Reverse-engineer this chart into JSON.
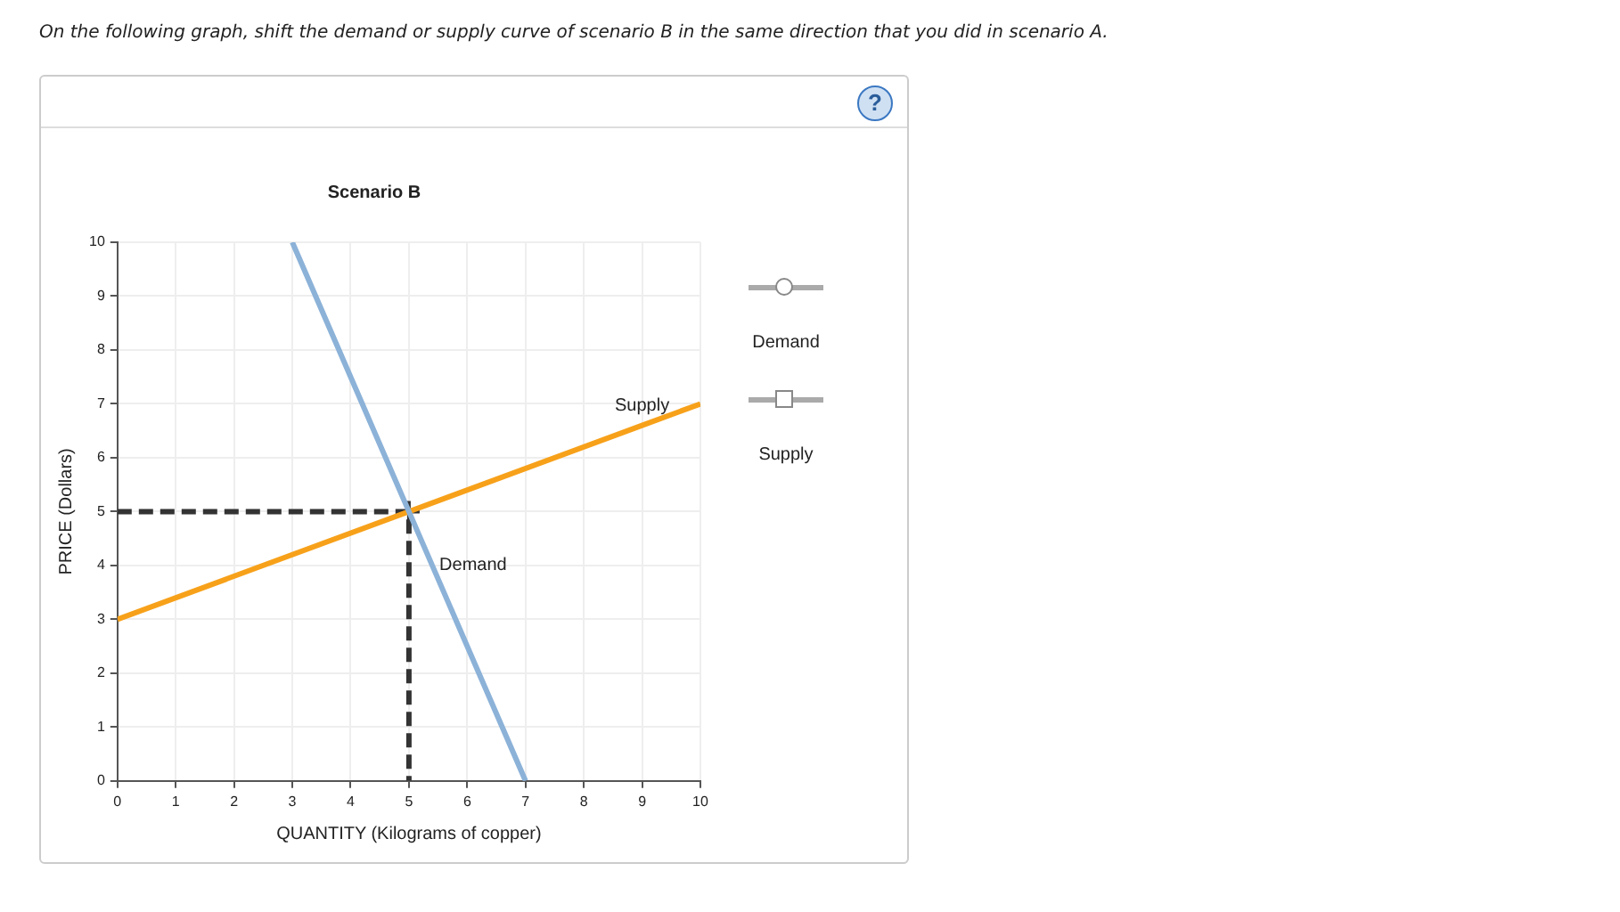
{
  "chart_data": {
    "type": "line",
    "title": "Scenario B",
    "xlabel": "QUANTITY (Kilograms of copper)",
    "ylabel": "PRICE (Dollars)",
    "annotations": [
      "On the following graph, shift the demand or supply curve of scenario B in the same direction that you did in scenario A.",
      "Demand",
      "Supply",
      "?"
    ],
    "series": [
      {
        "name": "Demand",
        "color": "#8cb2d8",
        "x": [
          3,
          5.4,
          7
        ],
        "values": [
          10,
          4,
          0
        ]
      },
      {
        "name": "Supply",
        "color": "#f7a11a",
        "x": [
          0,
          9,
          10
        ],
        "values": [
          3,
          6.6,
          7
        ]
      },
      {
        "color": "#333333",
        "x": [
          0,
          5,
          5
        ],
        "values": [
          5,
          5,
          0
        ],
        "line_style": "dashed"
      },
      {
        "type": "scatter",
        "color": "#333333",
        "x": [
          5
        ],
        "values": [
          5
        ],
        "marker": "cross"
      }
    ],
    "xlim": [
      0,
      10
    ],
    "xticks": [
      0,
      1,
      2,
      3,
      4,
      5,
      6,
      7,
      8,
      9,
      10
    ],
    "ylim": [
      0,
      10
    ],
    "yticks": [
      0,
      1,
      2,
      3,
      4,
      5,
      6,
      7,
      8,
      9,
      10
    ],
    "grid": true,
    "marker": "none",
    "line_style": "solid",
    "legend": false
  }
}
